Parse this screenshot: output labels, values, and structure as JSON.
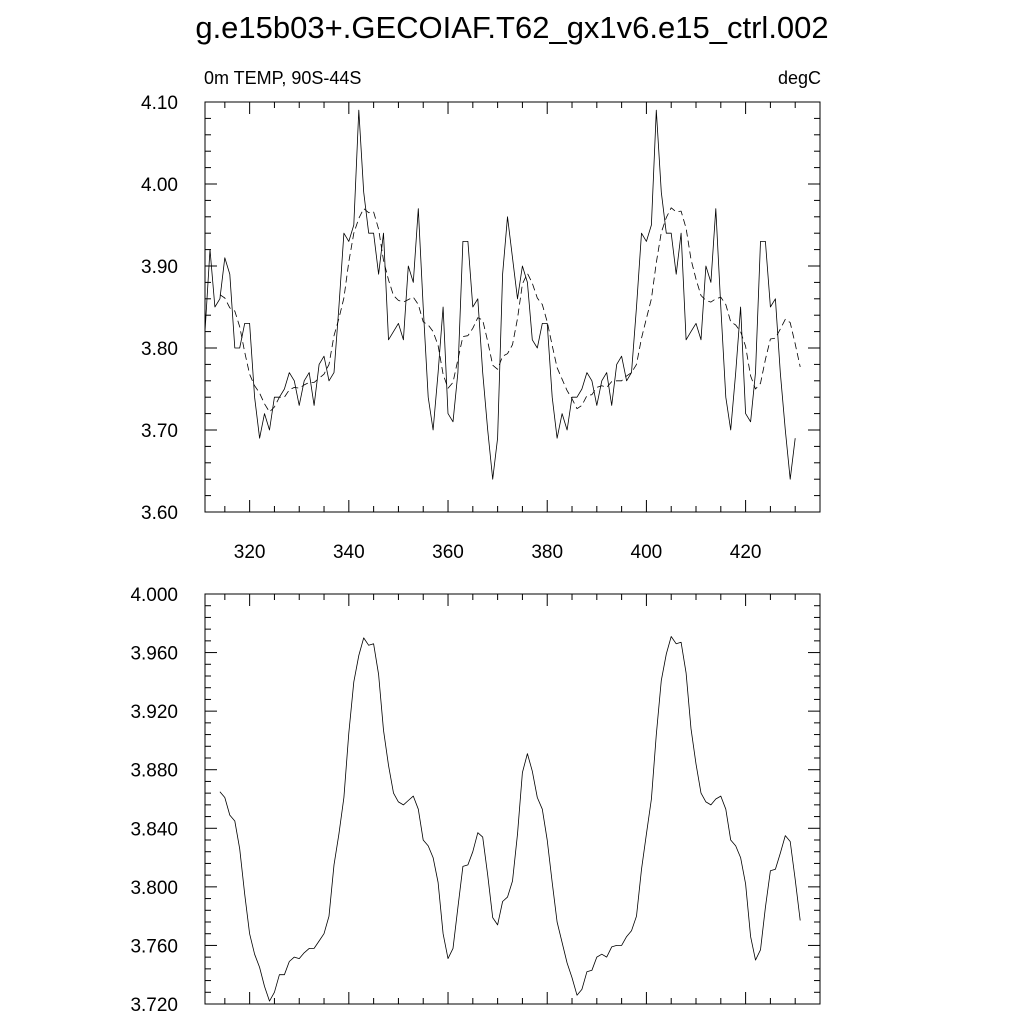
{
  "title": "g.e15b03+.GECOIAF.T62_gx1v6.e15_ctrl.002",
  "chart_data": [
    {
      "type": "line",
      "left_label": "0m TEMP, 90S-44S",
      "right_label": "degC",
      "xlim": [
        311,
        435
      ],
      "ylim": [
        3.6,
        4.1
      ],
      "x_ticks": [
        320,
        340,
        360,
        380,
        400,
        420
      ],
      "y_ticks": [
        "3.60",
        "3.70",
        "3.80",
        "3.90",
        "4.00",
        "4.10"
      ],
      "x_start": 311,
      "series": [
        {
          "style": "solid",
          "values": [
            3.82,
            3.92,
            3.85,
            3.86,
            3.91,
            3.89,
            3.8,
            3.8,
            3.83,
            3.83,
            3.74,
            3.69,
            3.72,
            3.7,
            3.74,
            3.74,
            3.75,
            3.77,
            3.76,
            3.73,
            3.76,
            3.77,
            3.73,
            3.78,
            3.79,
            3.76,
            3.77,
            3.85,
            3.94,
            3.93,
            3.95,
            4.09,
            3.99,
            3.94,
            3.94,
            3.89,
            3.94,
            3.81,
            3.82,
            3.83,
            3.81,
            3.9,
            3.88,
            3.97,
            3.85,
            3.74,
            3.7,
            3.77,
            3.85,
            3.72,
            3.71,
            3.77,
            3.93,
            3.93,
            3.85,
            3.86,
            3.77,
            3.7,
            3.64,
            3.69,
            3.89,
            3.96,
            3.91,
            3.86,
            3.9,
            3.88,
            3.81,
            3.8,
            3.83,
            3.83,
            3.74,
            3.69,
            3.72,
            3.7,
            3.74,
            3.74,
            3.75,
            3.77,
            3.76,
            3.73,
            3.76,
            3.77,
            3.73,
            3.78,
            3.79,
            3.76,
            3.77,
            3.85,
            3.94,
            3.93,
            3.95,
            4.09,
            3.99,
            3.94,
            3.94,
            3.89,
            3.94,
            3.81,
            3.82,
            3.83,
            3.81,
            3.9,
            3.88,
            3.97,
            3.85,
            3.74,
            3.7,
            3.77,
            3.85,
            3.72,
            3.71,
            3.77,
            3.93,
            3.93,
            3.85,
            3.86,
            3.77,
            3.7,
            3.64,
            3.69
          ]
        },
        {
          "style": "dashed",
          "x_start": 314,
          "values": [
            3.865,
            3.861,
            3.849,
            3.845,
            3.826,
            3.795,
            3.768,
            3.754,
            3.745,
            3.732,
            3.722,
            3.728,
            3.74,
            3.74,
            3.749,
            3.752,
            3.751,
            3.755,
            3.758,
            3.758,
            3.763,
            3.768,
            3.78,
            3.815,
            3.836,
            3.861,
            3.905,
            3.94,
            3.958,
            3.97,
            3.965,
            3.966,
            3.945,
            3.907,
            3.883,
            3.864,
            3.858,
            3.856,
            3.859,
            3.862,
            3.853,
            3.832,
            3.828,
            3.82,
            3.803,
            3.768,
            3.751,
            3.758,
            3.786,
            3.814,
            3.815,
            3.824,
            3.837,
            3.834,
            3.808,
            3.779,
            3.774,
            3.79,
            3.793,
            3.804,
            3.836,
            3.878,
            3.891,
            3.879,
            3.861,
            3.853,
            3.832,
            3.803,
            3.776,
            3.762,
            3.748,
            3.738,
            3.726,
            3.73,
            3.742,
            3.743,
            3.752,
            3.754,
            3.752,
            3.759,
            3.76,
            3.76,
            3.766,
            3.77,
            3.78,
            3.812,
            3.836,
            3.86,
            3.904,
            3.941,
            3.959,
            3.971,
            3.966,
            3.967,
            3.946,
            3.908,
            3.884,
            3.864,
            3.858,
            3.856,
            3.86,
            3.862,
            3.853,
            3.832,
            3.828,
            3.82,
            3.802,
            3.766,
            3.75,
            3.757,
            3.786,
            3.811,
            3.812,
            3.823,
            3.835,
            3.831,
            3.805,
            3.777
          ]
        }
      ]
    },
    {
      "type": "line",
      "xlim": [
        311,
        435
      ],
      "ylim": [
        3.72,
        4.0
      ],
      "y_ticks": [
        "3.720",
        "3.760",
        "3.800",
        "3.840",
        "3.880",
        "3.920",
        "3.960",
        "4.000"
      ],
      "series": [
        {
          "style": "solid",
          "x_start": 314,
          "values": [
            3.865,
            3.861,
            3.849,
            3.845,
            3.826,
            3.795,
            3.768,
            3.754,
            3.745,
            3.732,
            3.722,
            3.728,
            3.74,
            3.74,
            3.749,
            3.752,
            3.751,
            3.755,
            3.758,
            3.758,
            3.763,
            3.768,
            3.78,
            3.815,
            3.836,
            3.861,
            3.905,
            3.94,
            3.958,
            3.97,
            3.965,
            3.966,
            3.945,
            3.907,
            3.883,
            3.864,
            3.858,
            3.856,
            3.859,
            3.862,
            3.853,
            3.832,
            3.828,
            3.82,
            3.803,
            3.768,
            3.751,
            3.758,
            3.786,
            3.814,
            3.815,
            3.824,
            3.837,
            3.834,
            3.808,
            3.779,
            3.774,
            3.79,
            3.793,
            3.804,
            3.836,
            3.878,
            3.891,
            3.879,
            3.861,
            3.853,
            3.832,
            3.803,
            3.776,
            3.762,
            3.748,
            3.738,
            3.726,
            3.73,
            3.742,
            3.743,
            3.752,
            3.754,
            3.752,
            3.759,
            3.76,
            3.76,
            3.766,
            3.77,
            3.78,
            3.812,
            3.836,
            3.86,
            3.904,
            3.941,
            3.959,
            3.971,
            3.966,
            3.967,
            3.946,
            3.908,
            3.884,
            3.864,
            3.858,
            3.856,
            3.86,
            3.862,
            3.853,
            3.832,
            3.828,
            3.82,
            3.802,
            3.766,
            3.75,
            3.757,
            3.786,
            3.811,
            3.812,
            3.823,
            3.835,
            3.831,
            3.805,
            3.777
          ]
        }
      ]
    }
  ]
}
